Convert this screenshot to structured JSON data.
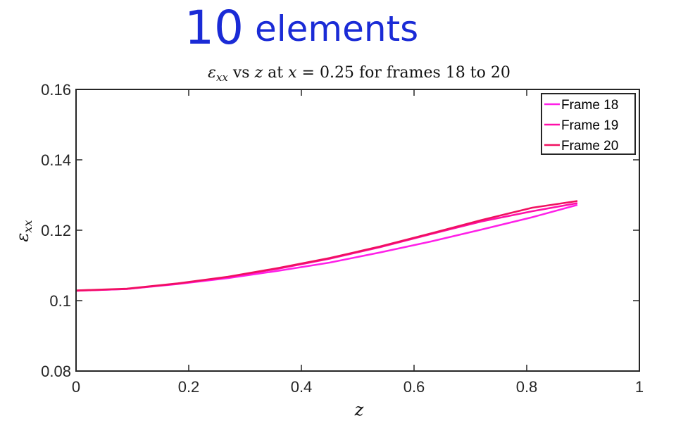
{
  "annotation": {
    "number": "10",
    "word": "elements"
  },
  "chart_data": {
    "type": "line",
    "title": {
      "var": "ε",
      "var_sub": "xx",
      "vs_text": " vs ",
      "z_var": "z",
      "at_text": " at ",
      "x_var": "x",
      "eq_text": " = 0.25 for frames 18 to 20"
    },
    "xlabel": "z",
    "ylabel": {
      "var": "ε",
      "sub": "xx"
    },
    "xlim": [
      0,
      1
    ],
    "ylim": [
      0.08,
      0.16
    ],
    "xticks": [
      0,
      0.2,
      0.4,
      0.6,
      0.8,
      1
    ],
    "xtick_labels": [
      "0",
      "0.2",
      "0.4",
      "0.6",
      "0.8",
      "1"
    ],
    "yticks": [
      0.08,
      0.1,
      0.12,
      0.14,
      0.16
    ],
    "ytick_labels": [
      "0.08",
      "0.1",
      "0.12",
      "0.14",
      "0.16"
    ],
    "grid": false,
    "legend_position": "top-right",
    "series": [
      {
        "name": "Frame 18",
        "color": "#ff1fe8",
        "x": [
          0,
          0.09,
          0.18,
          0.27,
          0.36,
          0.45,
          0.54,
          0.63,
          0.72,
          0.81,
          0.89
        ],
        "y": [
          0.1028,
          0.1033,
          0.1047,
          0.1064,
          0.1085,
          0.1108,
          0.1137,
          0.1168,
          0.1202,
          0.1237,
          0.1272
        ]
      },
      {
        "name": "Frame 19",
        "color": "#ff0fa8",
        "x": [
          0,
          0.09,
          0.18,
          0.27,
          0.36,
          0.45,
          0.54,
          0.63,
          0.72,
          0.81,
          0.89
        ],
        "y": [
          0.1028,
          0.1033,
          0.1048,
          0.1067,
          0.1091,
          0.1119,
          0.1152,
          0.1189,
          0.1225,
          0.1254,
          0.1277
        ]
      },
      {
        "name": "Frame 20",
        "color": "#f01060",
        "x": [
          0,
          0.09,
          0.18,
          0.27,
          0.36,
          0.45,
          0.54,
          0.63,
          0.72,
          0.81,
          0.89
        ],
        "y": [
          0.1029,
          0.1034,
          0.1049,
          0.1068,
          0.1093,
          0.1121,
          0.1154,
          0.1191,
          0.1229,
          0.1264,
          0.1283
        ]
      }
    ]
  }
}
